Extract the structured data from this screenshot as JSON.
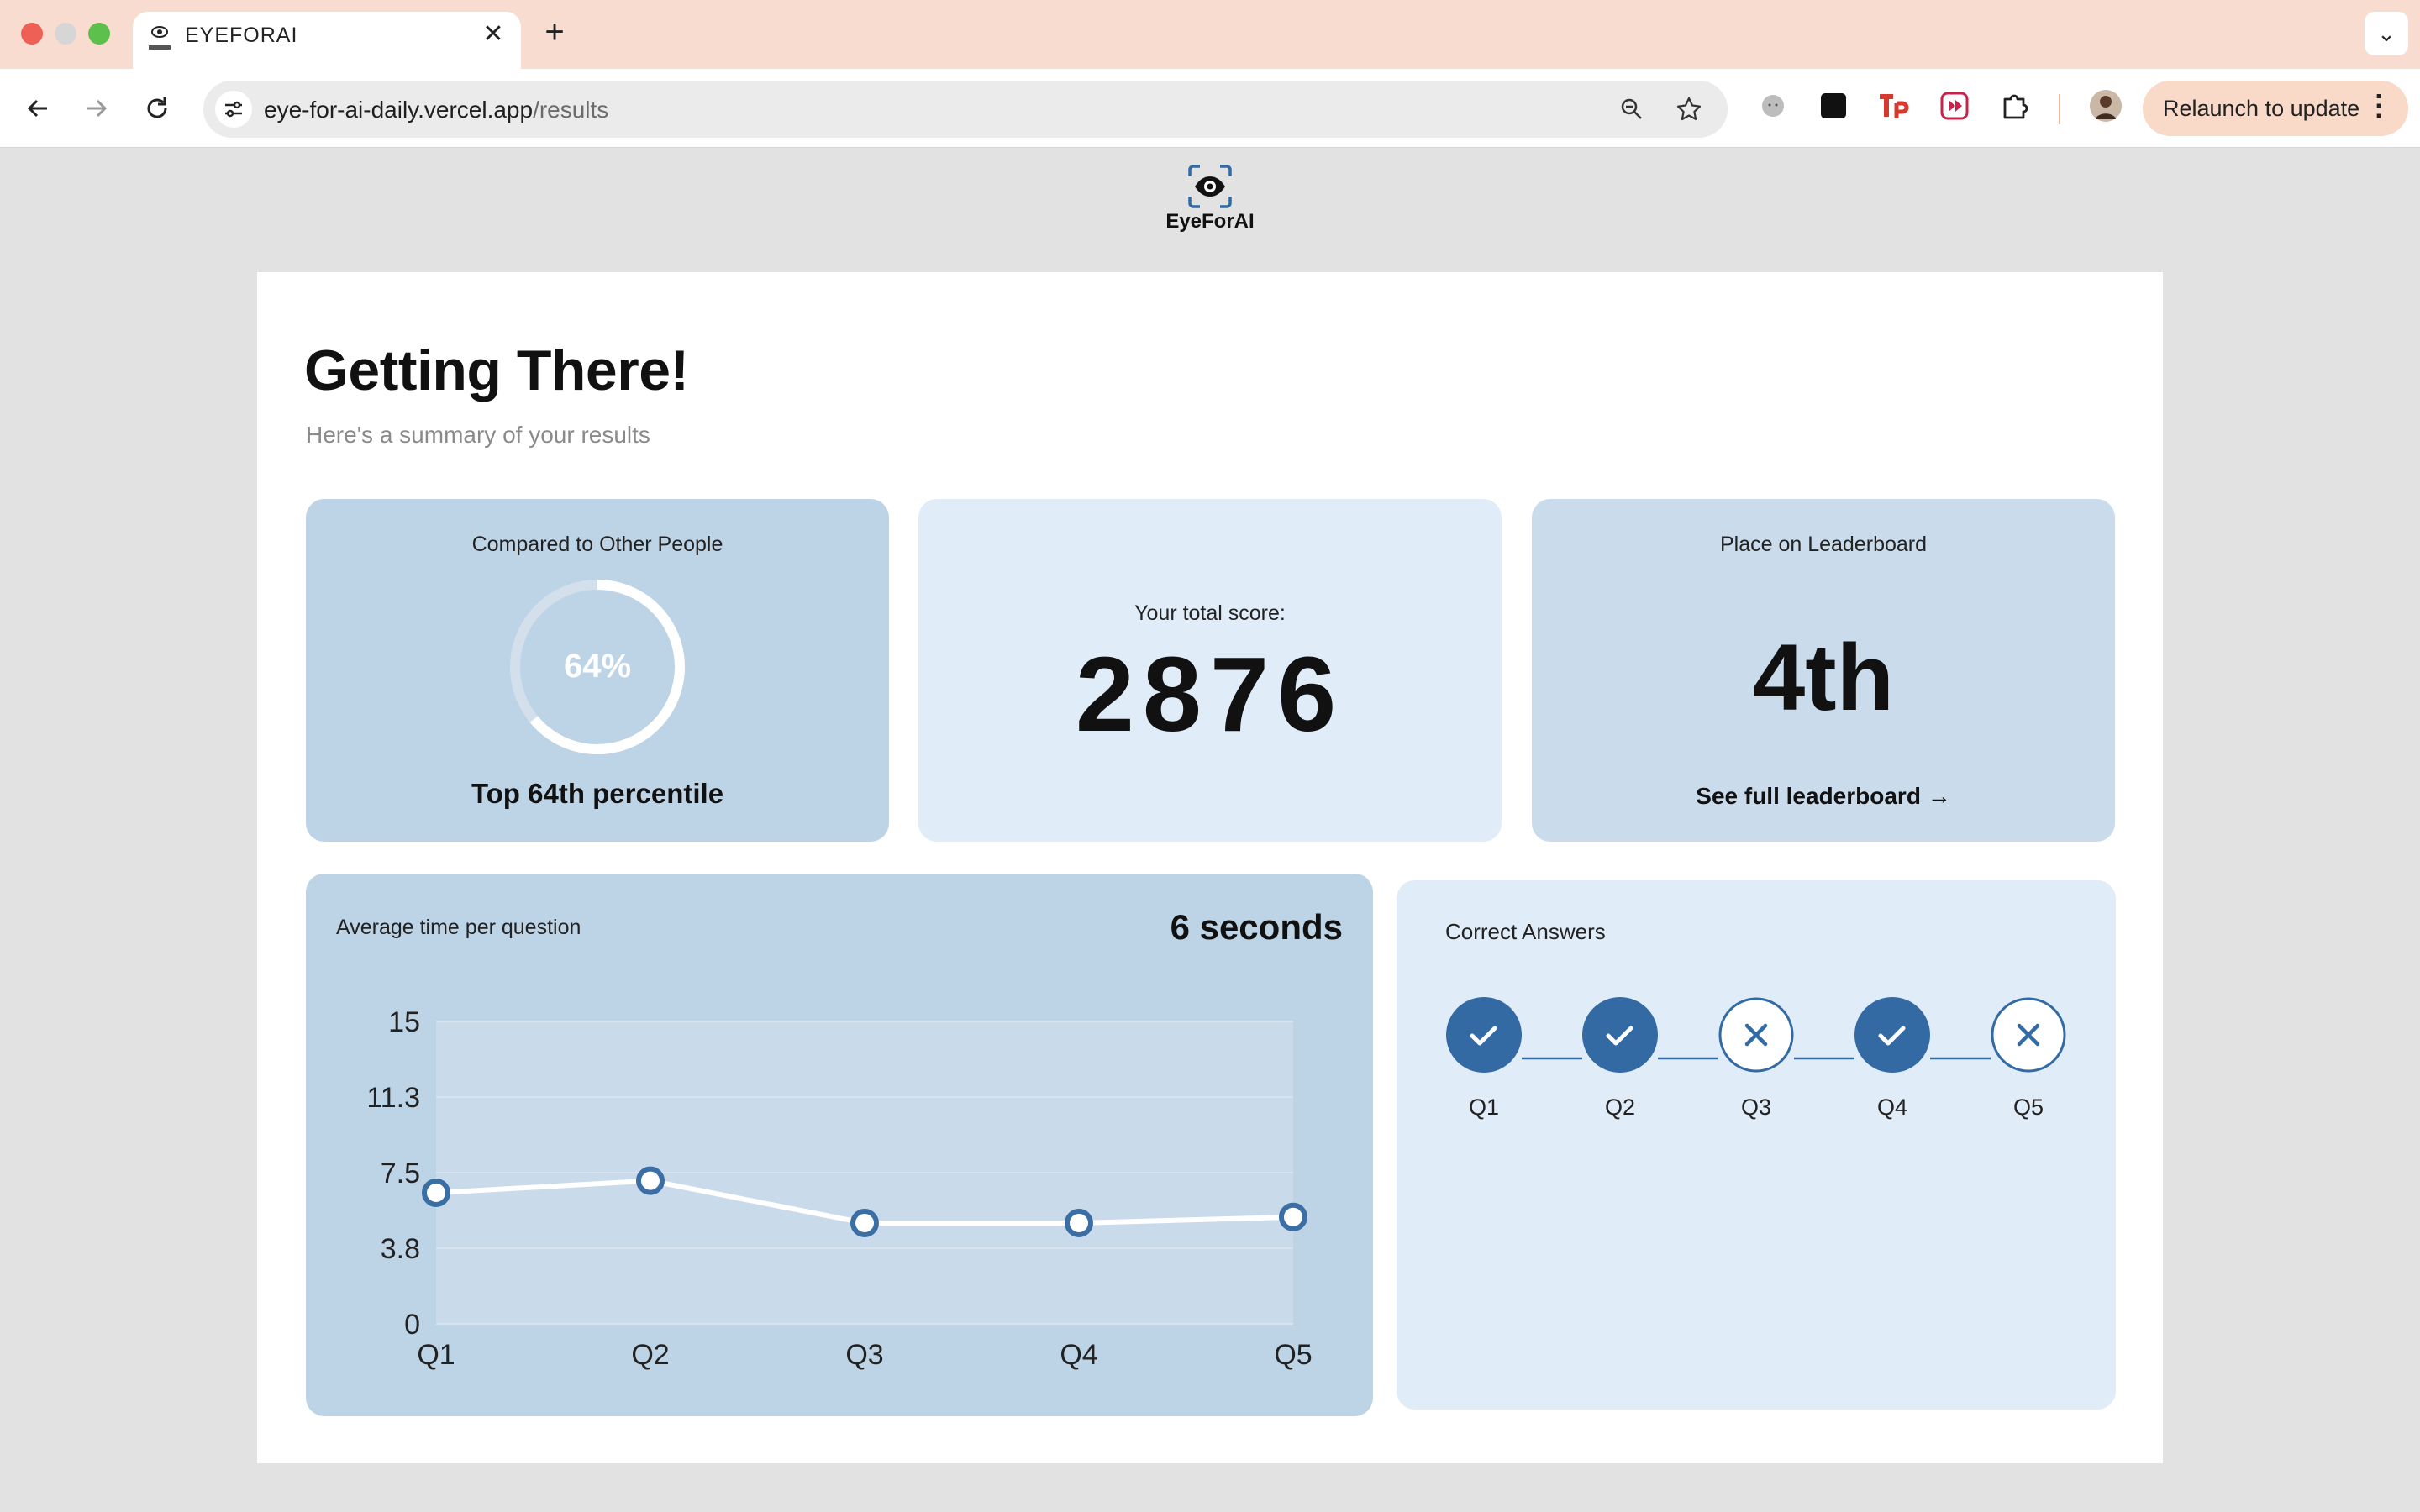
{
  "browser": {
    "tab_title": "EYEFORAI",
    "tab_close_glyph": "✕",
    "new_tab_glyph": "+",
    "tab_menu_glyph": "⌄",
    "url_host": "eye-for-ai-daily.vercel.app",
    "url_path": "/results",
    "relaunch_label": "Relaunch to update",
    "icons": [
      "back-icon",
      "forward-icon",
      "reload-icon",
      "site-info-icon",
      "zoom-icon",
      "bookmark-star-icon",
      "extension-icons",
      "puzzle-icon",
      "profile-avatar",
      "more-icon"
    ]
  },
  "logo": {
    "text": "EyeForAI"
  },
  "page": {
    "heading": "Getting There!",
    "subheading": "Here's a summary of your results"
  },
  "stats": {
    "comparison": {
      "title": "Compared to Other People",
      "percent": 64,
      "percent_label": "64%",
      "caption": "Top 64th percentile"
    },
    "score": {
      "title": "Your total score:",
      "value": "2876"
    },
    "leaderboard": {
      "title": "Place on Leaderboard",
      "place": "4th",
      "link": "See full leaderboard →"
    }
  },
  "time_card": {
    "title": "Average time per question",
    "value": "6 seconds"
  },
  "chart_data": {
    "type": "line",
    "title": "",
    "xlabel": "",
    "ylabel": "",
    "categories": [
      "Q1",
      "Q2",
      "Q3",
      "Q4",
      "Q5"
    ],
    "values": [
      6.5,
      7.1,
      5.0,
      5.0,
      5.3
    ],
    "y_ticks": [
      "0",
      "3.8",
      "7.5",
      "11.3",
      "15"
    ],
    "ylim": [
      0,
      15
    ],
    "grid": true,
    "colors": {
      "line": "#ffffff",
      "marker_stroke": "#3a6ea5",
      "grid": "#d7e3ef",
      "area": "#c9dbeb"
    }
  },
  "answers": {
    "title": "Correct Answers",
    "items": [
      {
        "label": "Q1",
        "correct": true
      },
      {
        "label": "Q2",
        "correct": true
      },
      {
        "label": "Q3",
        "correct": false
      },
      {
        "label": "Q4",
        "correct": true
      },
      {
        "label": "Q5",
        "correct": false
      }
    ],
    "colors": {
      "correct_fill": "#336aa3",
      "incorrect_fill": "#ffffff",
      "incorrect_stroke": "#336aa3"
    }
  }
}
